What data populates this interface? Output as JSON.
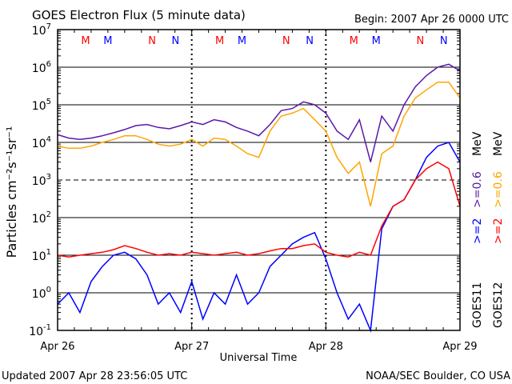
{
  "chart_data": {
    "type": "line",
    "title": "GOES Electron Flux (5 minute data)",
    "begin_label": "Begin: 2007 Apr 26 0000 UTC",
    "xlabel": "Universal Time",
    "ylabel": "Particles cm⁻²s⁻¹sr⁻¹",
    "yscale": "log",
    "ylim": [
      0.1,
      10000000
    ],
    "xlim_hours": [
      0,
      72
    ],
    "y_ticks": [
      {
        "base": "10",
        "exp": "7"
      },
      {
        "base": "10",
        "exp": "6"
      },
      {
        "base": "10",
        "exp": "5"
      },
      {
        "base": "10",
        "exp": "4"
      },
      {
        "base": "10",
        "exp": "3"
      },
      {
        "base": "10",
        "exp": "2"
      },
      {
        "base": "10",
        "exp": "1"
      },
      {
        "base": "10",
        "exp": "0"
      },
      {
        "base": "10",
        "exp": "-1"
      }
    ],
    "x_ticks": [
      {
        "hour": 0,
        "label": "Apr 26"
      },
      {
        "hour": 24,
        "label": "Apr 27"
      },
      {
        "hour": 48,
        "label": "Apr 28"
      },
      {
        "hour": 72,
        "label": "Apr 29"
      }
    ],
    "threshold_line": 1000,
    "markers": [
      {
        "label": "M",
        "hour": 5.0,
        "color": "#ff0000"
      },
      {
        "label": "M",
        "hour": 9.0,
        "color": "#0000ff"
      },
      {
        "label": "N",
        "hour": 16.9,
        "color": "#ff0000"
      },
      {
        "label": "N",
        "hour": 21.1,
        "color": "#0000ff"
      }
    ],
    "hours": [
      0,
      2,
      4,
      6,
      8,
      10,
      12,
      14,
      16,
      18,
      20,
      22,
      24,
      26,
      28,
      30,
      32,
      34,
      36,
      38,
      40,
      42,
      44,
      46,
      48,
      50,
      52,
      54,
      56,
      58,
      60,
      62,
      64,
      66,
      68,
      70,
      72
    ],
    "series": [
      {
        "name": "GOES11 >=0.6 MeV",
        "color": "#5a18a8",
        "values": [
          16000,
          13000,
          12000,
          13000,
          15000,
          18000,
          22000,
          28000,
          30000,
          25000,
          23000,
          28000,
          35000,
          30000,
          40000,
          35000,
          25000,
          20000,
          15000,
          30000,
          70000,
          80000,
          120000,
          100000,
          60000,
          20000,
          12000,
          40000,
          3000,
          50000,
          20000,
          100000,
          300000,
          600000,
          1000000,
          1200000,
          800000
        ]
      },
      {
        "name": "GOES12 >=0.6 MeV",
        "color": "#ffa500",
        "values": [
          8000,
          7000,
          7000,
          8000,
          10000,
          12000,
          15000,
          15000,
          12000,
          9000,
          8000,
          9000,
          12000,
          8000,
          13000,
          12000,
          8000,
          5000,
          4000,
          20000,
          50000,
          60000,
          80000,
          40000,
          20000,
          4000,
          1500,
          3000,
          200,
          5000,
          8000,
          50000,
          150000,
          250000,
          400000,
          400000,
          150000
        ]
      },
      {
        "name": "GOES12 >=2 MeV",
        "color": "#ff0000",
        "values": [
          10,
          9,
          10,
          11,
          12,
          14,
          18,
          15,
          12,
          10,
          11,
          10,
          12,
          11,
          10,
          11,
          12,
          10,
          11,
          13,
          15,
          15,
          18,
          20,
          12,
          10,
          9,
          12,
          10,
          60,
          200,
          300,
          1000,
          2000,
          3000,
          2000,
          200
        ]
      },
      {
        "name": "GOES11 >=2 MeV",
        "color": "#0000ff",
        "values": [
          0.5,
          1,
          0.3,
          2,
          5,
          10,
          12,
          8,
          3,
          0.5,
          1,
          0.3,
          2,
          0.2,
          1,
          0.5,
          3,
          0.5,
          1,
          5,
          10,
          20,
          30,
          40,
          8,
          1,
          0.2,
          0.5,
          0.1,
          50,
          200,
          300,
          1000,
          4000,
          8000,
          10000,
          3000
        ]
      }
    ],
    "legend": {
      "goes11": {
        "sat": "GOES11",
        "hi": ">=2",
        "lo": ">=0.6",
        "unit": "MeV",
        "hi_color": "#0000ff",
        "lo_color": "#5a18a8"
      },
      "goes12": {
        "sat": "GOES12",
        "hi": ">=2",
        "lo": ">=0.6",
        "unit": "MeV",
        "hi_color": "#ff0000",
        "lo_color": "#ffa500"
      }
    },
    "grid": true
  },
  "footer": {
    "updated": "Updated 2007 Apr 28 23:56:05 UTC",
    "source": "NOAA/SEC Boulder, CO USA"
  }
}
